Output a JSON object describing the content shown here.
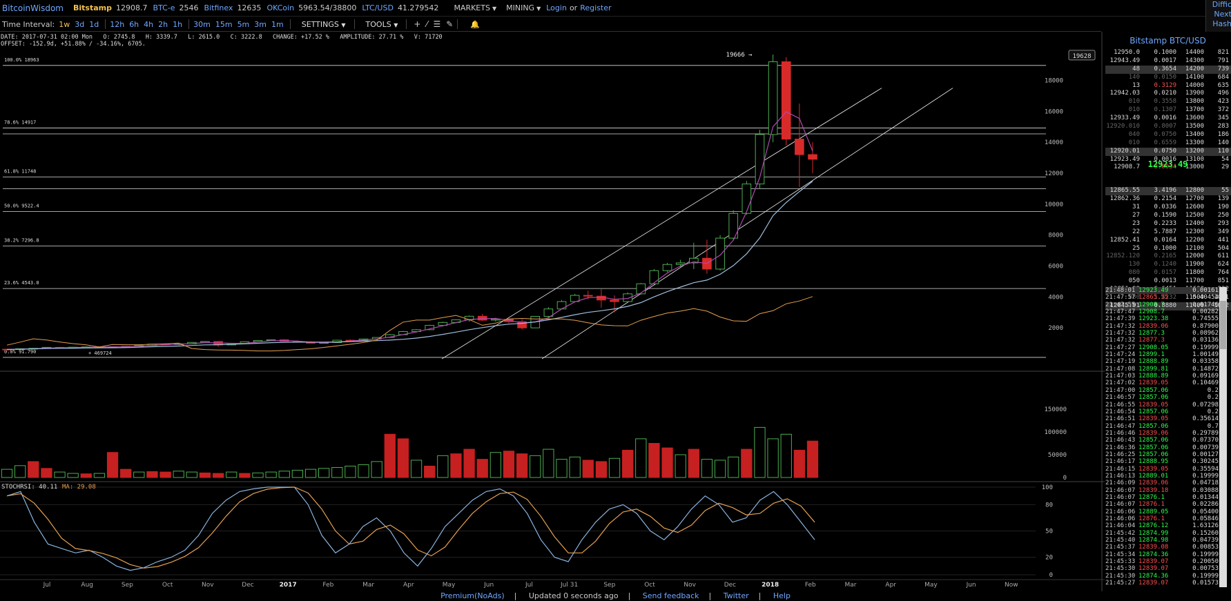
{
  "brand": "BitcoinWisdom",
  "markets": [
    {
      "exchange": "Bitstamp",
      "price": "12908.7",
      "style": "gold"
    },
    {
      "exchange": "BTC-e",
      "price": "2546",
      "style": "blue"
    },
    {
      "exchange": "Bitfinex",
      "price": "12635",
      "style": "blue"
    },
    {
      "exchange": "OKCoin",
      "price": "5963.54/38800",
      "style": "blue"
    },
    {
      "exchange": "LTC/USD",
      "price": "41.279542",
      "style": "blue"
    }
  ],
  "top_menus": {
    "markets": "MARKETS",
    "mining": "MINING",
    "login": "Login",
    "or": "or",
    "register": "Register"
  },
  "corner": [
    "Diffic",
    "Next",
    "Hash"
  ],
  "toolbar": {
    "label": "Time Interval:",
    "groups": [
      [
        "1w",
        "3d",
        "1d"
      ],
      [
        "12h",
        "6h",
        "4h",
        "2h",
        "1h"
      ],
      [
        "30m",
        "15m",
        "5m",
        "3m",
        "1m"
      ]
    ],
    "active": "1w",
    "settings": "SETTINGS",
    "tools": "TOOLS"
  },
  "info": {
    "line1": "DATE: 2017-07-31 02:00 Mon   O: 2745.8   H: 3339.7   L: 2615.0   C: 3222.8   CHANGE: +17.52 %   AMPLITUDE: 27.71 %   V: 71720",
    "line2": "OFFSET: -152.9d, +51.88% / -34.16%, 6705."
  },
  "chart_data": {
    "type": "candlestick",
    "high_label": "19666",
    "current_price_tag": "19628",
    "price_axis": [
      "18000",
      "16000",
      "14000",
      "12000",
      "10000",
      "8000",
      "6000",
      "4000",
      "2000"
    ],
    "volume_axis": [
      "150000",
      "100000",
      "50000",
      "0"
    ],
    "stoch_axis": [
      "100",
      "80",
      "50",
      "20",
      "0"
    ],
    "x_labels": [
      "Jul",
      "Aug",
      "Sep",
      "Oct",
      "Nov",
      "Dec",
      "2017",
      "Feb",
      "Mar",
      "Apr",
      "May",
      "Jun",
      "Jul",
      "Jul 31",
      "Sep",
      "Oct",
      "Nov",
      "Dec",
      "2018",
      "Feb",
      "Mar",
      "Apr",
      "May",
      "Jun",
      "Now"
    ],
    "fib_levels": [
      {
        "label": "100.0% 18963",
        "value": 18963
      },
      {
        "label": "78.6% 14917",
        "value": 14917
      },
      {
        "label": "61.8% 11748",
        "value": 11748
      },
      {
        "label": "50.0% 9522.4",
        "value": 9522.4
      },
      {
        "label": "38.2% 7296.8",
        "value": 7296.8
      },
      {
        "label": "23.6% 4543.0",
        "value": 4543.0
      },
      {
        "label": "0.0% 91.790",
        "value": 91.79
      }
    ],
    "fib_note": "+ 469724",
    "stoch_label": "STOCHRSI: 40.11",
    "ma_label": "MA: 29.08",
    "candles": [
      [
        620,
        640,
        590,
        600
      ],
      [
        600,
        660,
        580,
        650
      ],
      [
        650,
        700,
        640,
        680
      ],
      [
        680,
        760,
        660,
        740
      ],
      [
        740,
        780,
        700,
        710
      ],
      [
        710,
        760,
        690,
        750
      ],
      [
        750,
        790,
        720,
        770
      ],
      [
        770,
        800,
        740,
        760
      ],
      [
        760,
        790,
        730,
        780
      ],
      [
        780,
        810,
        760,
        800
      ],
      [
        800,
        870,
        790,
        860
      ],
      [
        860,
        960,
        840,
        950
      ],
      [
        950,
        1000,
        900,
        920
      ],
      [
        920,
        980,
        890,
        970
      ],
      [
        970,
        1080,
        950,
        1060
      ],
      [
        1060,
        1140,
        1040,
        1120
      ],
      [
        1120,
        1150,
        780,
        900
      ],
      [
        900,
        1010,
        880,
        990
      ],
      [
        990,
        1120,
        980,
        1100
      ],
      [
        1100,
        1200,
        1080,
        1180
      ],
      [
        1180,
        1240,
        1170,
        1230
      ],
      [
        1230,
        1270,
        1100,
        1130
      ],
      [
        1130,
        1200,
        1060,
        1080
      ],
      [
        1080,
        1130,
        1000,
        1010
      ],
      [
        1010,
        1070,
        1000,
        1050
      ],
      [
        1050,
        1220,
        1040,
        1200
      ],
      [
        1200,
        1260,
        1150,
        1180
      ],
      [
        1180,
        1300,
        1140,
        1280
      ],
      [
        1280,
        1400,
        1260,
        1380
      ],
      [
        1380,
        1600,
        1360,
        1560
      ],
      [
        1560,
        1800,
        1540,
        1760
      ],
      [
        1760,
        1920,
        1700,
        1880
      ],
      [
        1880,
        2200,
        1850,
        2160
      ],
      [
        2160,
        2400,
        2100,
        2350
      ],
      [
        2350,
        2550,
        2300,
        2520
      ],
      [
        2520,
        2800,
        2400,
        2750
      ],
      [
        2750,
        2900,
        2450,
        2500
      ],
      [
        2500,
        2650,
        2400,
        2560
      ],
      [
        2560,
        2600,
        2300,
        2400
      ],
      [
        2400,
        2550,
        1900,
        2000
      ],
      [
        2000,
        2745,
        1980,
        2745
      ],
      [
        2745,
        3340,
        2615,
        3223
      ],
      [
        3223,
        3800,
        3200,
        3700
      ],
      [
        3700,
        4200,
        3650,
        4100
      ],
      [
        4100,
        4400,
        3850,
        4050
      ],
      [
        4050,
        4500,
        3300,
        3800
      ],
      [
        3800,
        4100,
        3000,
        3700
      ],
      [
        3700,
        4300,
        3650,
        4200
      ],
      [
        4200,
        4900,
        4150,
        4850
      ],
      [
        4850,
        5800,
        4800,
        5700
      ],
      [
        5700,
        6200,
        5600,
        6100
      ],
      [
        6100,
        6400,
        5900,
        6200
      ],
      [
        6200,
        7500,
        5800,
        6500
      ],
      [
        6500,
        7700,
        5500,
        5800
      ],
      [
        5800,
        8000,
        5700,
        7800
      ],
      [
        7800,
        9600,
        7700,
        9400
      ],
      [
        9400,
        11500,
        9300,
        11300
      ],
      [
        11300,
        14800,
        11000,
        14500
      ],
      [
        14500,
        19666,
        14000,
        19200
      ],
      [
        19200,
        19500,
        13800,
        14200
      ],
      [
        14200,
        16500,
        11100,
        13200
      ],
      [
        13200,
        14000,
        12000,
        12900
      ]
    ],
    "volumes": [
      18000,
      26000,
      35000,
      20000,
      12000,
      9000,
      8000,
      9000,
      55000,
      18000,
      12000,
      13000,
      12000,
      14000,
      12000,
      10000,
      9000,
      12000,
      9000,
      10000,
      12000,
      14000,
      16000,
      18000,
      20000,
      22000,
      25000,
      28000,
      35000,
      95000,
      85000,
      38000,
      25000,
      48000,
      52000,
      62000,
      40000,
      55000,
      58000,
      52000,
      48000,
      62000,
      40000,
      45000,
      38000,
      35000,
      42000,
      60000,
      85000,
      75000,
      65000,
      50000,
      62000,
      40000,
      38000,
      45000,
      62000,
      110000,
      85000,
      95000,
      60000,
      80000
    ],
    "volume_red": [
      0,
      0,
      1,
      1,
      0,
      0,
      1,
      0,
      1,
      1,
      0,
      1,
      1,
      0,
      0,
      1,
      1,
      0,
      1,
      0,
      0,
      0,
      0,
      0,
      0,
      0,
      0,
      0,
      0,
      1,
      1,
      0,
      1,
      0,
      1,
      1,
      1,
      0,
      1,
      1,
      0,
      0,
      0,
      0,
      1,
      1,
      0,
      1,
      0,
      1,
      1,
      0,
      1,
      0,
      0,
      0,
      1,
      0,
      0,
      0,
      1,
      1
    ]
  },
  "order_book": {
    "title": "Bitstamp BTC/USD",
    "asks": [
      {
        "price": "12950.0",
        "amount": "0.1000",
        "level": "14400",
        "count": "821",
        "hl": false
      },
      {
        "price": "12943.49",
        "amount": "0.0017",
        "level": "14300",
        "count": "791",
        "hl": false
      },
      {
        "price": "48",
        "amount": "0.3654",
        "level": "14200",
        "count": "739",
        "hl": true
      },
      {
        "price": "140",
        "amount": "0.0150",
        "level": "14100",
        "count": "684",
        "hl": false,
        "dim": true
      },
      {
        "price": "13",
        "amount": "0.3129",
        "level": "14000",
        "count": "635",
        "hl": false,
        "red": true
      },
      {
        "price": "12942.03",
        "amount": "0.0210",
        "level": "13900",
        "count": "496",
        "hl": false
      },
      {
        "price": "010",
        "amount": "0.3558",
        "level": "13800",
        "count": "423",
        "hl": false,
        "dim": true
      },
      {
        "price": "010",
        "amount": "0.1307",
        "level": "13700",
        "count": "372",
        "hl": false,
        "dim": true
      },
      {
        "price": "12933.49",
        "amount": "0.0016",
        "level": "13600",
        "count": "345",
        "hl": false
      },
      {
        "price": "12920.010",
        "amount": "0.8007",
        "level": "13500",
        "count": "283",
        "hl": false,
        "dim": true
      },
      {
        "price": "040",
        "amount": "0.0750",
        "level": "13400",
        "count": "186",
        "hl": false,
        "dim": true
      },
      {
        "price": "010",
        "amount": "0.6559",
        "level": "13300",
        "count": "140",
        "hl": false,
        "dim": true
      },
      {
        "price": "12920.01",
        "amount": "0.0750",
        "level": "13200",
        "count": "110",
        "hl": true
      },
      {
        "price": "12923.49",
        "amount": "0.0016",
        "level": "13100",
        "count": "54",
        "hl": false
      },
      {
        "price": "12908.7",
        "amount": "0.0034",
        "level": "13000",
        "count": "29",
        "hl": false,
        "red": true
      }
    ],
    "mid": "12923.49",
    "bids": [
      {
        "price": "12865.55",
        "amount": "3.4196",
        "level": "12800",
        "count": "55",
        "hl": true
      },
      {
        "price": "12862.36",
        "amount": "0.2154",
        "level": "12700",
        "count": "139",
        "hl": false
      },
      {
        "price": "31",
        "amount": "0.0336",
        "level": "12600",
        "count": "190",
        "hl": false
      },
      {
        "price": "27",
        "amount": "0.1590",
        "level": "12500",
        "count": "250",
        "hl": false
      },
      {
        "price": "23",
        "amount": "0.2233",
        "level": "12400",
        "count": "293",
        "hl": false
      },
      {
        "price": "22",
        "amount": "5.7887",
        "level": "12300",
        "count": "349",
        "hl": false
      },
      {
        "price": "12852.41",
        "amount": "0.0164",
        "level": "12200",
        "count": "441",
        "hl": false
      },
      {
        "price": "25",
        "amount": "0.1000",
        "level": "12100",
        "count": "504",
        "hl": false
      },
      {
        "price": "12852.120",
        "amount": "0.2165",
        "level": "12000",
        "count": "611",
        "hl": false,
        "dim": true
      },
      {
        "price": "130",
        "amount": "0.1240",
        "level": "11900",
        "count": "624",
        "hl": false,
        "dim": true
      },
      {
        "price": "080",
        "amount": "0.0157",
        "level": "11800",
        "count": "764",
        "hl": false,
        "dim": true
      },
      {
        "price": "050",
        "amount": "0.0013",
        "level": "11700",
        "count": "851",
        "hl": false
      },
      {
        "price": "12851.99",
        "amount": "6.6451",
        "level": "11600",
        "count": "932",
        "hl": false
      },
      {
        "price": "080",
        "amount": "1.4232",
        "level": "11500",
        "count": "1041",
        "hl": false,
        "dim": true
      },
      {
        "price": "12845.91",
        "amount": "0.8880",
        "level": "11400",
        "count": "1072",
        "hl": true
      }
    ]
  },
  "trades": [
    {
      "time": "21:48:01",
      "price": "12923.49",
      "amount": "0.00161",
      "side": "buy"
    },
    {
      "time": "21:47:57",
      "price": "12865.55",
      "amount": "0.40454",
      "side": "sell"
    },
    {
      "time": "21:47:55",
      "price": "12908.7",
      "amount": "0.01746",
      "side": "buy"
    },
    {
      "time": "21:47:47",
      "price": "12908.7",
      "amount": "0.00282",
      "side": "buy"
    },
    {
      "time": "21:47:39",
      "price": "12923.38",
      "amount": "0.74555",
      "side": "buy"
    },
    {
      "time": "21:47:32",
      "price": "12839.06",
      "amount": "0.87900",
      "side": "sell"
    },
    {
      "time": "21:47:32",
      "price": "12877.3",
      "amount": "0.08962",
      "side": "buy"
    },
    {
      "time": "21:47:32",
      "price": "12877.3",
      "amount": "0.03136",
      "side": "sell"
    },
    {
      "time": "21:47:27",
      "price": "12908.05",
      "amount": "0.19999",
      "side": "buy"
    },
    {
      "time": "21:47:24",
      "price": "12899.1",
      "amount": "1.00149",
      "side": "buy"
    },
    {
      "time": "21:47:19",
      "price": "12888.89",
      "amount": "0.03358",
      "side": "buy"
    },
    {
      "time": "21:47:08",
      "price": "12899.81",
      "amount": "0.14872",
      "side": "buy"
    },
    {
      "time": "21:47:03",
      "price": "12888.89",
      "amount": "0.09169",
      "side": "buy"
    },
    {
      "time": "21:47:02",
      "price": "12839.05",
      "amount": "0.10469",
      "side": "sell"
    },
    {
      "time": "21:47:00",
      "price": "12857.06",
      "amount": "0.2",
      "side": "buy"
    },
    {
      "time": "21:46:57",
      "price": "12857.06",
      "amount": "0.2",
      "side": "buy"
    },
    {
      "time": "21:46:55",
      "price": "12839.05",
      "amount": "0.07298",
      "side": "sell"
    },
    {
      "time": "21:46:54",
      "price": "12857.06",
      "amount": "0.2",
      "side": "buy"
    },
    {
      "time": "21:46:51",
      "price": "12839.05",
      "amount": "0.35614",
      "side": "sell"
    },
    {
      "time": "21:46:47",
      "price": "12857.06",
      "amount": "0.7",
      "side": "buy"
    },
    {
      "time": "21:46:46",
      "price": "12839.06",
      "amount": "0.29789",
      "side": "sell"
    },
    {
      "time": "21:46:43",
      "price": "12857.06",
      "amount": "0.07370",
      "side": "buy"
    },
    {
      "time": "21:46:36",
      "price": "12857.06",
      "amount": "0.00739",
      "side": "buy"
    },
    {
      "time": "21:46:25",
      "price": "12857.06",
      "amount": "0.00127",
      "side": "buy"
    },
    {
      "time": "21:46:17",
      "price": "12888.95",
      "amount": "0.30245",
      "side": "buy"
    },
    {
      "time": "21:46:15",
      "price": "12839.05",
      "amount": "0.35594",
      "side": "sell"
    },
    {
      "time": "21:46:13",
      "price": "12889.01",
      "amount": "0.19999",
      "side": "buy"
    },
    {
      "time": "21:46:09",
      "price": "12839.06",
      "amount": "0.04718",
      "side": "sell"
    },
    {
      "time": "21:46:07",
      "price": "12839.18",
      "amount": "0.03088",
      "side": "sell"
    },
    {
      "time": "21:46:07",
      "price": "12876.1",
      "amount": "0.01344",
      "side": "buy"
    },
    {
      "time": "21:46:07",
      "price": "12876.1",
      "amount": "0.02286",
      "side": "sell"
    },
    {
      "time": "21:46:06",
      "price": "12889.05",
      "amount": "0.05400",
      "side": "buy"
    },
    {
      "time": "21:46:06",
      "price": "12876.1",
      "amount": "0.05846",
      "side": "sell"
    },
    {
      "time": "21:46:04",
      "price": "12876.12",
      "amount": "1.63126",
      "side": "buy"
    },
    {
      "time": "21:45:42",
      "price": "12874.99",
      "amount": "0.15260",
      "side": "buy"
    },
    {
      "time": "21:45:40",
      "price": "12874.98",
      "amount": "0.04739",
      "side": "buy"
    },
    {
      "time": "21:45:37",
      "price": "12839.08",
      "amount": "0.00853",
      "side": "sell"
    },
    {
      "time": "21:45:34",
      "price": "12874.36",
      "amount": "0.19999",
      "side": "buy"
    },
    {
      "time": "21:45:33",
      "price": "12839.07",
      "amount": "0.20050",
      "side": "sell"
    },
    {
      "time": "21:45:30",
      "price": "12839.07",
      "amount": "0.00753",
      "side": "sell"
    },
    {
      "time": "21:45:30",
      "price": "12874.36",
      "amount": "0.19999",
      "side": "buy"
    },
    {
      "time": "21:45:27",
      "price": "12839.07",
      "amount": "0.01573",
      "side": "sell"
    }
  ],
  "footer": {
    "premium": "Premium(NoAds)",
    "updated": "Updated 0 seconds ago",
    "feedback": "Send feedback",
    "twitter": "Twitter",
    "help": "Help"
  }
}
